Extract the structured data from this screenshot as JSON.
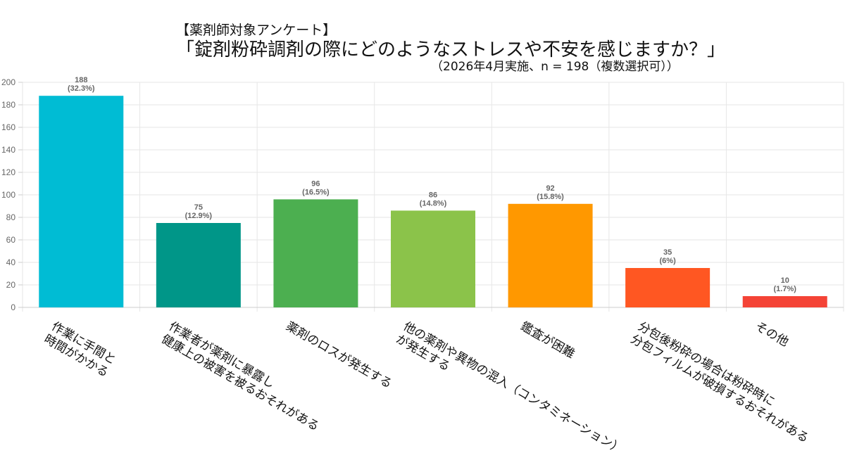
{
  "header": {
    "bracket_title": "【薬剤師対象アンケート】",
    "main_title": "「錠剤粉砕調剤の際にどのようなストレスや不安を感じますか？」",
    "subtitle": "（2026年4月実施、n = 198（複数選択可））"
  },
  "chart_data": {
    "type": "bar",
    "title": "「錠剤粉砕調剤の際にどのようなストレスや不安を感じますか？」",
    "xlabel": "",
    "ylabel": "",
    "ylim": [
      0,
      200
    ],
    "yticks": [
      0,
      20,
      40,
      60,
      80,
      100,
      120,
      140,
      160,
      180,
      200
    ],
    "grid": true,
    "categories": [
      [
        "作業に手間と",
        "時間がかかる"
      ],
      [
        "作業者が薬剤に暴露し",
        "健康上の被害を被るおそれがある"
      ],
      [
        "薬剤のロスが発生する"
      ],
      [
        "他の薬剤や異物の混入（コンタミネーション）",
        "が発生する"
      ],
      [
        "鑑査が困難"
      ],
      [
        "分包後粉砕の場合は粉砕時に",
        "分包フィルムが破損するおそれがある"
      ],
      [
        "その他"
      ]
    ],
    "values": [
      188,
      75,
      96,
      86,
      92,
      35,
      10
    ],
    "percent_labels": [
      "(32.3%)",
      "(12.9%)",
      "(16.5%)",
      "(14.8%)",
      "(15.8%)",
      "(6%)",
      "(1.7%)"
    ],
    "colors": [
      "#00BCD4",
      "#009688",
      "#4CAF50",
      "#8BC34A",
      "#FF9800",
      "#FF5722",
      "#F44336"
    ]
  }
}
